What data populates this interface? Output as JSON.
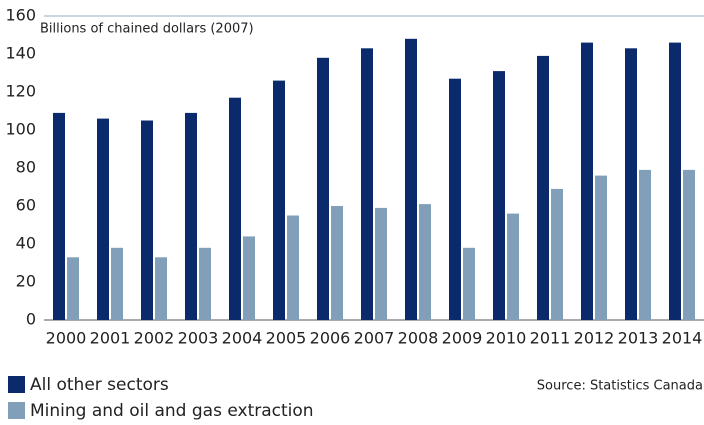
{
  "chart_data": {
    "type": "bar",
    "y_label": "Billions of chained dollars (2007)",
    "source": "Source: Statistics Canada",
    "categories": [
      "2000",
      "2001",
      "2002",
      "2003",
      "2004",
      "2005",
      "2006",
      "2007",
      "2008",
      "2009",
      "2010",
      "2011",
      "2012",
      "2013",
      "2014"
    ],
    "series": [
      {
        "name": "All other sectors",
        "color": "#0b2a6c",
        "values": [
          109,
          106,
          105,
          109,
          117,
          126,
          138,
          143,
          148,
          127,
          131,
          139,
          146,
          143,
          146
        ]
      },
      {
        "name": "Mining and oil and gas extraction",
        "color": "#819fb8",
        "values": [
          33,
          38,
          33,
          38,
          44,
          55,
          60,
          59,
          61,
          38,
          56,
          69,
          76,
          79,
          79
        ]
      }
    ],
    "ylim": [
      0,
      160
    ],
    "yticks": [
      0,
      20,
      40,
      60,
      80,
      100,
      120,
      140,
      160
    ],
    "legend": "bottom-left"
  }
}
